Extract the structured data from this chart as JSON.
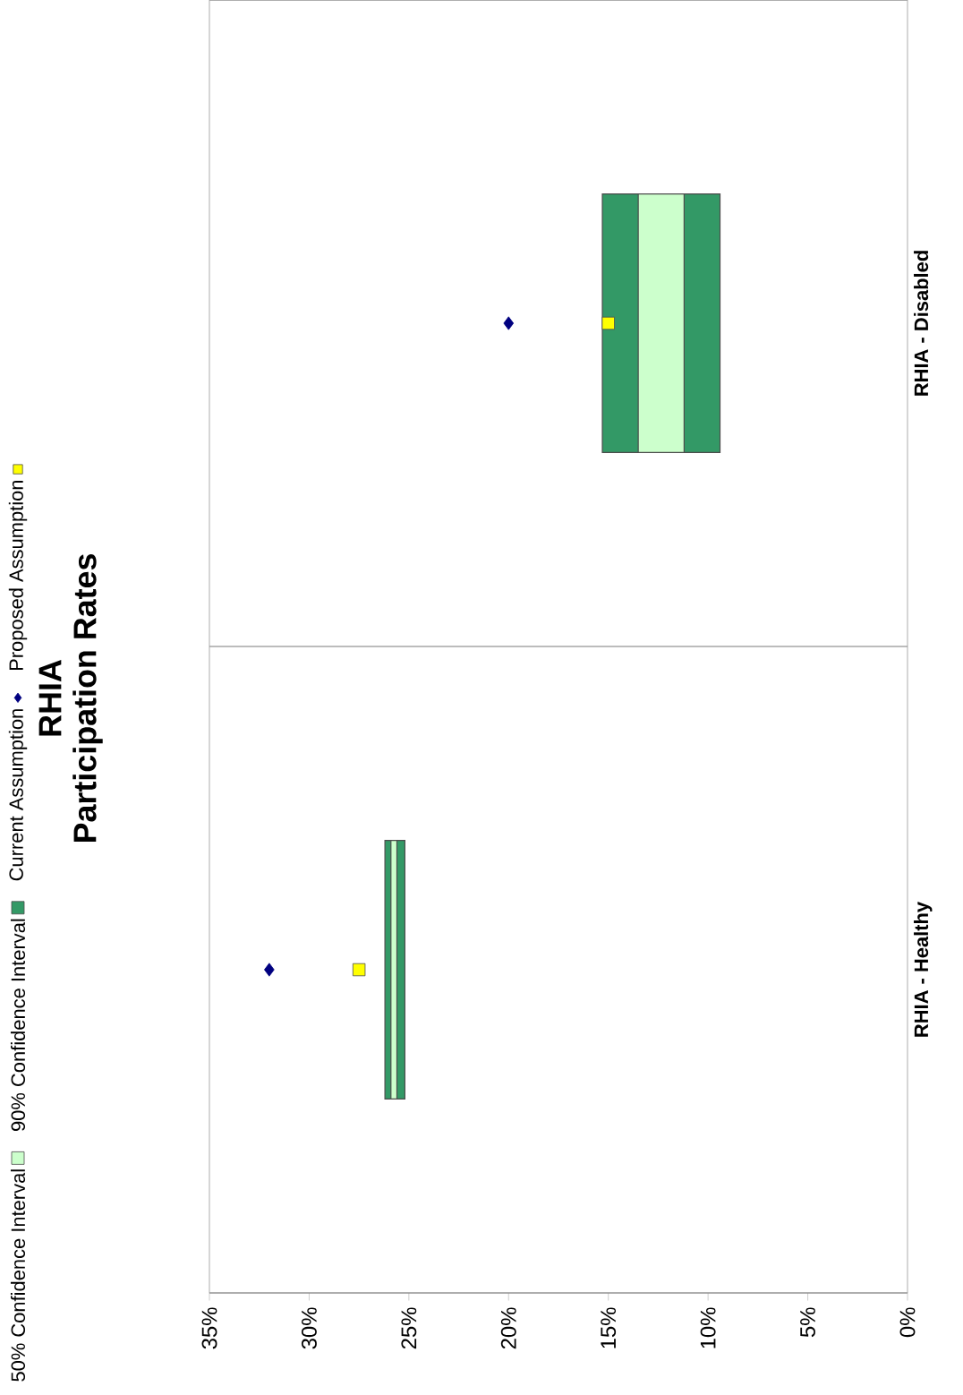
{
  "chart_data": {
    "type": "bar",
    "orientation": "horizontal",
    "title": "RHIA",
    "subtitle": "Participation Rates",
    "categories": [
      "RHIA - Disabled",
      "RHIA - Healthy"
    ],
    "series": [
      {
        "name": "50% Confidence Interval",
        "color": "#ccffcc",
        "base": [
          11.2,
          25.6
        ],
        "values": [
          2.3,
          0.3
        ]
      },
      {
        "name": "90% Confidence Interval",
        "color": "#339966",
        "base": [
          9.4,
          25.2
        ],
        "values": [
          5.9,
          1.0
        ]
      },
      {
        "name": "Current Assumption",
        "type": "scatter",
        "marker": "diamond",
        "color": "#000080",
        "x": [
          "RHIA - Disabled",
          "RHIA - Healthy"
        ],
        "values": [
          20.0,
          32.0
        ]
      },
      {
        "name": "Proposed Assumption",
        "type": "scatter",
        "marker": "square",
        "color": "#ffff00",
        "x": [
          "RHIA - Disabled",
          "RHIA - Healthy"
        ],
        "values": [
          15.0,
          27.5
        ]
      }
    ],
    "xlim": [
      35,
      0
    ],
    "xticks": [
      {
        "value": 35,
        "label": "35%"
      },
      {
        "value": 30,
        "label": "30%"
      },
      {
        "value": 25,
        "label": "25%"
      },
      {
        "value": 20,
        "label": "20%"
      },
      {
        "value": 15,
        "label": "15%"
      },
      {
        "value": 10,
        "label": "10%"
      },
      {
        "value": 5,
        "label": "5%"
      },
      {
        "value": 0,
        "label": "0%"
      }
    ],
    "grid": "y",
    "legend": "left"
  }
}
